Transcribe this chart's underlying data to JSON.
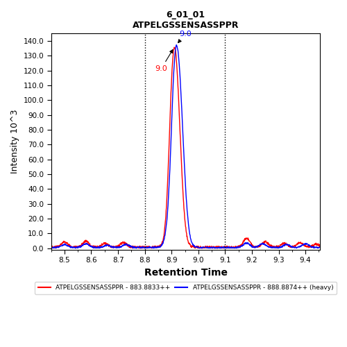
{
  "title_line1": "6_01_01",
  "title_line2": "ATPELGSSENSASSPPR",
  "xlabel": "Retention Time",
  "ylabel": "Intensity 10^3",
  "xlim": [
    8.45,
    9.455
  ],
  "ylim": [
    -1,
    145
  ],
  "yticks": [
    0.0,
    10.0,
    20.0,
    30.0,
    40.0,
    50.0,
    60.0,
    70.0,
    80.0,
    90.0,
    100.0,
    110.0,
    120.0,
    130.0,
    140.0
  ],
  "vline1": 8.8,
  "vline2": 9.1,
  "peak_label_blue": "9.0",
  "peak_label_red": "9.0",
  "legend_red_label": "ATPELGSSENSASSPPR - 883.8833++",
  "legend_blue_label": "ATPELGSSENSASSPPR - 888.8874++ (heavy)",
  "line_color_red": "#FF0000",
  "line_color_blue": "#0000FF",
  "background_color": "#FFFFFF"
}
